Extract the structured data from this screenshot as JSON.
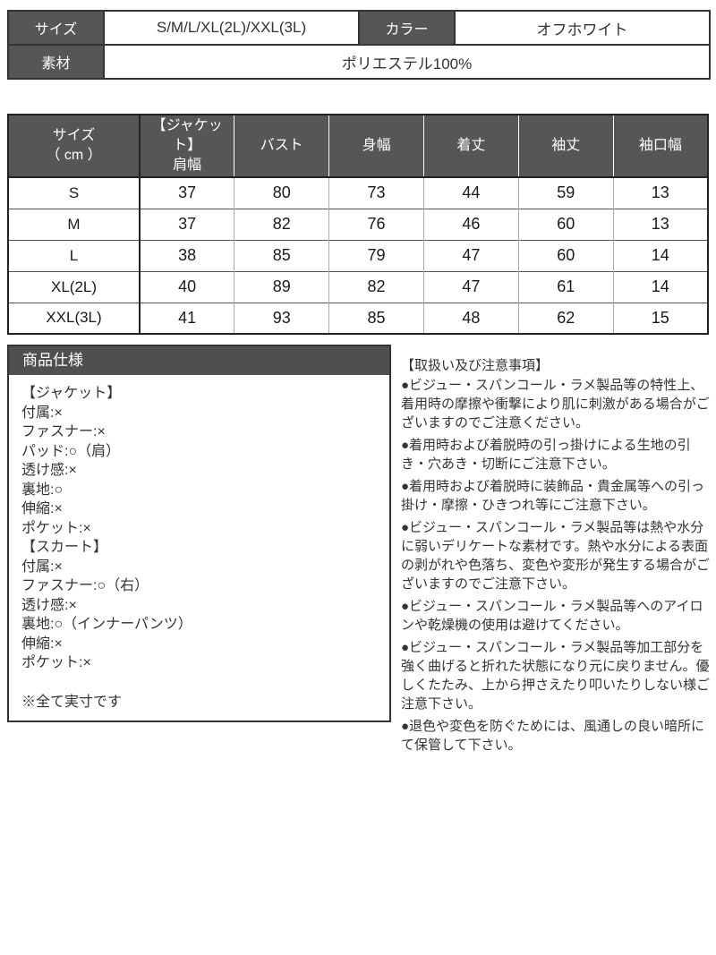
{
  "colors": {
    "header_bg": "#565656",
    "spec_header_bg": "#4f4f4f",
    "border_dark": "#333333",
    "grid_light": "#aaaaaa",
    "text": "#333333"
  },
  "top_table": {
    "size_label": "サイズ",
    "size_value": "S/M/L/XL(2L)/XXL(3L)",
    "color_label": "カラー",
    "color_value": "オフホワイト",
    "material_label": "素材",
    "material_value": "ポリエステル100%"
  },
  "size_chart": {
    "header": {
      "col1_line1": "サイズ",
      "col1_line2": "（ cm ）",
      "col2_line1": "【ジャケット】",
      "col2_line2": "肩幅",
      "col3": "バスト",
      "col4": "身幅",
      "col5": "着丈",
      "col6": "袖丈",
      "col7": "袖口幅"
    },
    "rows": [
      {
        "size": "S",
        "shoulder": "37",
        "bust": "80",
        "body_width": "73",
        "length": "44",
        "sleeve": "59",
        "cuff": "13"
      },
      {
        "size": "M",
        "shoulder": "37",
        "bust": "82",
        "body_width": "76",
        "length": "46",
        "sleeve": "60",
        "cuff": "13"
      },
      {
        "size": "L",
        "shoulder": "38",
        "bust": "85",
        "body_width": "79",
        "length": "47",
        "sleeve": "60",
        "cuff": "14"
      },
      {
        "size": "XL(2L)",
        "shoulder": "40",
        "bust": "89",
        "body_width": "82",
        "length": "47",
        "sleeve": "61",
        "cuff": "14"
      },
      {
        "size": "XXL(3L)",
        "shoulder": "41",
        "bust": "93",
        "body_width": "85",
        "length": "48",
        "sleeve": "62",
        "cuff": "15"
      }
    ]
  },
  "product_spec": {
    "title": "商品仕様",
    "lines": [
      "【ジャケット】",
      "付属:×",
      "ファスナー:×",
      "パッド:○（肩）",
      "透け感:×",
      "裏地:○",
      "伸縮:×",
      "ポケット:×",
      "【スカート】",
      "付属:×",
      "ファスナー:○（右）",
      "透け感:×",
      "裏地:○（インナーパンツ）",
      "伸縮:×",
      "ポケット:×"
    ],
    "note": "※全て実寸です"
  },
  "precautions": {
    "title": "【取扱い及び注意事項】",
    "items": [
      "●ビジュー・スパンコール・ラメ製品等の特性上、着用時の摩擦や衝撃により肌に刺激がある場合がございますのでご注意ください。",
      "●着用時および着脱時の引っ掛けによる生地の引き・穴あき・切断にご注意下さい。",
      "●着用時および着脱時に装飾品・貴金属等への引っ掛け・摩擦・ひきつれ等にご注意下さい。",
      "●ビジュー・スパンコール・ラメ製品等は熱や水分に弱いデリケートな素材です。熱や水分による表面の剥がれや色落ち、変色や変形が発生する場合がございますのでご注意下さい。",
      "●ビジュー・スパンコール・ラメ製品等へのアイロンや乾燥機の使用は避けてください。",
      "●ビジュー・スパンコール・ラメ製品等加工部分を強く曲げると折れた状態になり元に戻りません。優しくたたみ、上から押さえたり叩いたりしない様ご注意下さい。",
      "●退色や変色を防ぐためには、風通しの良い暗所にて保管して下さい。"
    ]
  }
}
